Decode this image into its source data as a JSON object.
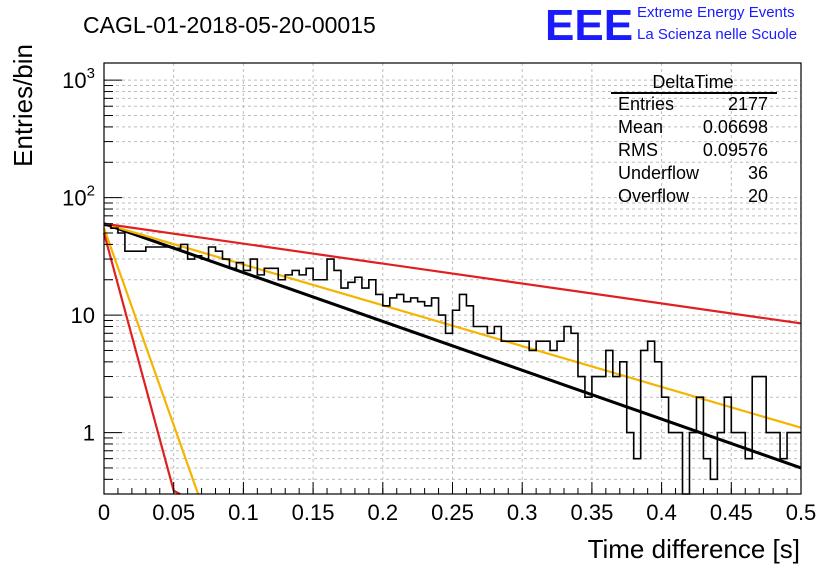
{
  "chart_data": {
    "type": "histogram",
    "title": "CAGL-01-2018-05-20-00015",
    "xlabel": "Time difference [s]",
    "ylabel": "Entries/bin",
    "xlim": [
      0,
      0.5
    ],
    "ylim": [
      0.3,
      1400
    ],
    "y_scale": "log",
    "grid": true,
    "x_ticks": [
      "0",
      "0.05",
      "0.1",
      "0.15",
      "0.2",
      "0.25",
      "0.3",
      "0.35",
      "0.4",
      "0.45",
      "0.5"
    ],
    "y_tick_labels": [
      {
        "value": 1,
        "base": "1",
        "exp": ""
      },
      {
        "value": 10,
        "base": "10",
        "exp": ""
      },
      {
        "value": 100,
        "base": "10",
        "exp": "2"
      },
      {
        "value": 1000,
        "base": "10",
        "exp": "3"
      }
    ],
    "bin_width": 0.005,
    "histogram_counts": [
      58,
      55,
      50,
      35,
      35,
      35,
      38,
      38,
      38,
      38,
      37,
      40,
      30,
      32,
      30,
      38,
      35,
      30,
      25,
      28,
      24,
      30,
      22,
      25,
      25,
      20,
      22,
      24,
      22,
      25,
      20,
      20,
      30,
      24,
      17,
      19,
      21,
      17,
      20,
      15,
      12,
      14,
      15,
      13,
      14,
      13,
      12,
      14,
      10,
      7,
      11,
      15,
      12,
      8,
      8,
      7,
      8,
      6,
      6,
      6,
      6,
      5,
      6,
      6,
      5,
      6,
      8,
      7,
      3,
      2,
      3,
      3,
      5,
      3,
      4,
      1,
      0.6,
      5,
      6,
      4,
      2,
      1,
      1,
      0,
      1,
      2,
      0.6,
      0.4,
      1,
      2,
      1,
      1,
      0.6,
      3,
      3,
      1,
      1,
      0.6,
      1,
      1
    ],
    "fit_lines": [
      {
        "color": "#000000",
        "x": [
          0,
          0.5
        ],
        "y": [
          60,
          0.5
        ]
      },
      {
        "color": "#f4b400",
        "x": [
          0,
          0.5
        ],
        "y": [
          60,
          1.1
        ]
      },
      {
        "color": "#e02020",
        "x": [
          0,
          0.5
        ],
        "y": [
          60,
          8.5
        ]
      },
      {
        "color": "#f4b400",
        "x": [
          0,
          0.0675
        ],
        "y": [
          55,
          0.3
        ]
      },
      {
        "color": "#e02020",
        "x": [
          0,
          0.05,
          0.0545
        ],
        "y": [
          50,
          0.32,
          0.3
        ]
      }
    ],
    "stats": {
      "title": "DeltaTime",
      "rows": [
        {
          "label": "Entries",
          "value": "2177"
        },
        {
          "label": "Mean",
          "value": "0.06698"
        },
        {
          "label": "RMS",
          "value": "0.09576"
        },
        {
          "label": "Underflow",
          "value": "36"
        },
        {
          "label": "Overflow",
          "value": "20"
        }
      ]
    }
  },
  "logo": {
    "text": "EEE",
    "line1": "Extreme Energy Events",
    "line2": "La Scienza nelle Scuole"
  }
}
